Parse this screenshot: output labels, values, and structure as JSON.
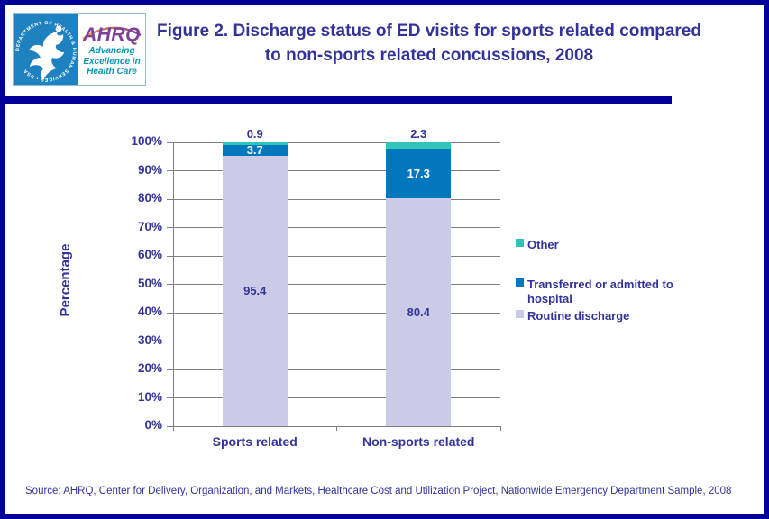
{
  "header": {
    "title": "Figure 2. Discharge status of ED visits for sports related compared to non-sports related concussions, 2008",
    "logo": {
      "hhs_ring_text": "DEPARTMENT OF HEALTH & HUMAN SERVICES • USA",
      "ahrq_acronym": "AHRQ",
      "tagline": [
        "Advancing",
        "Excellence in",
        "Health Care"
      ]
    }
  },
  "chart_data": {
    "type": "bar",
    "stacked": true,
    "categories": [
      "Sports related",
      "Non-sports related"
    ],
    "series": [
      {
        "name": "Routine discharge",
        "values": [
          95.4,
          80.4
        ],
        "color": "#CBCBE8",
        "label_color": "#333399"
      },
      {
        "name": "Transferred or admitted to hospital",
        "values": [
          3.7,
          17.3
        ],
        "color": "#0077BE",
        "label_color": "#FFFFFF"
      },
      {
        "name": "Other",
        "values": [
          0.9,
          2.3
        ],
        "color": "#33C3B8",
        "label_color": "#333399"
      }
    ],
    "ylabel": "Percentage",
    "ylim": [
      0,
      100
    ],
    "ytick_step": 10,
    "ytick_suffix": "%",
    "grid": true,
    "legend_position": "right",
    "legend_order": [
      "Other",
      "Transferred or admitted to hospital",
      "Routine discharge"
    ]
  },
  "footer": {
    "source": "Source: AHRQ, Center for Delivery, Organization, and Markets, Healthcare Cost and Utilization Project, Nationwide Emergency Department Sample, 2008"
  },
  "colors": {
    "frame_border": "#000099",
    "header_divider": "#000099",
    "title_text": "#333399",
    "axis_text": "#333399",
    "gridline": "#808080",
    "footer_text": "#333399",
    "hhs_panel_blue": "#1E82C0",
    "ahrq_purple": "#7D4199",
    "tagline_teal": "#0995B2"
  }
}
